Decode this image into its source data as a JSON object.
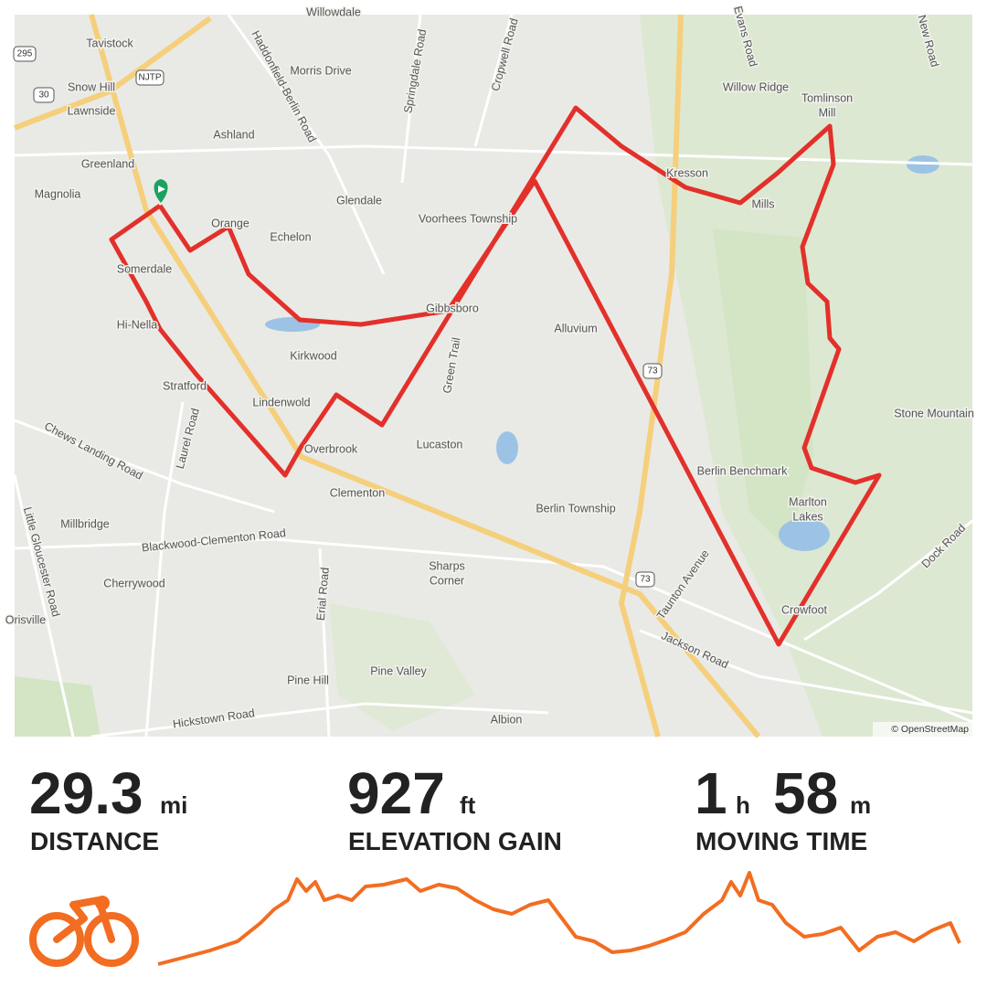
{
  "map": {
    "labels": [
      "Willowdale",
      "Tavistock",
      "Snow Hill",
      "Lawnside",
      "Ashland",
      "Greenland",
      "Magnolia",
      "Morris Drive",
      "Haddonfield-Berlin Road",
      "Springdale Road",
      "Cropwell Road",
      "Willow Ridge",
      "Tomlinson",
      "Mill",
      "Evans Road",
      "New Road",
      "Kresson",
      "Mills",
      "Glendale",
      "Echelon",
      "Orange",
      "Voorhees Township",
      "Somerdale",
      "Gibbsboro",
      "Hi-Nella",
      "Alluvium",
      "Kirkwood",
      "Stratford",
      "Lindenwold",
      "Green Trail",
      "Overbrook",
      "Lucaston",
      "Chews Landing Road",
      "Laurel Road",
      "Clementon",
      "Berlin Township",
      "Berlin Benchmark",
      "Marlton",
      "Lakes",
      "Stone Mountain",
      "Millbridge",
      "Blackwood-Clementon Road",
      "Taunton Avenue",
      "Dock Road",
      "Little Gloucester Road",
      "Cherrywood",
      "Sharps",
      "Corner",
      "Erial Road",
      "Crowfoot",
      "Jackson Road",
      "Pine Hill",
      "Pine Valley",
      "Hickstown Road",
      "Albion",
      "Orisville"
    ],
    "shields": [
      "295",
      "NJTP",
      "30",
      "73",
      "73"
    ],
    "attribution": "© OpenStreetMap"
  },
  "stats": {
    "distance": {
      "value": 29.3,
      "unit": "mi",
      "label": "DISTANCE"
    },
    "elevation": {
      "value": 927,
      "unit": "ft",
      "label": "ELEVATION GAIN"
    },
    "moving_time": {
      "hours": 1,
      "hours_unit": "h",
      "minutes": 58,
      "minutes_unit": "m",
      "label": "MOVING TIME"
    }
  }
}
